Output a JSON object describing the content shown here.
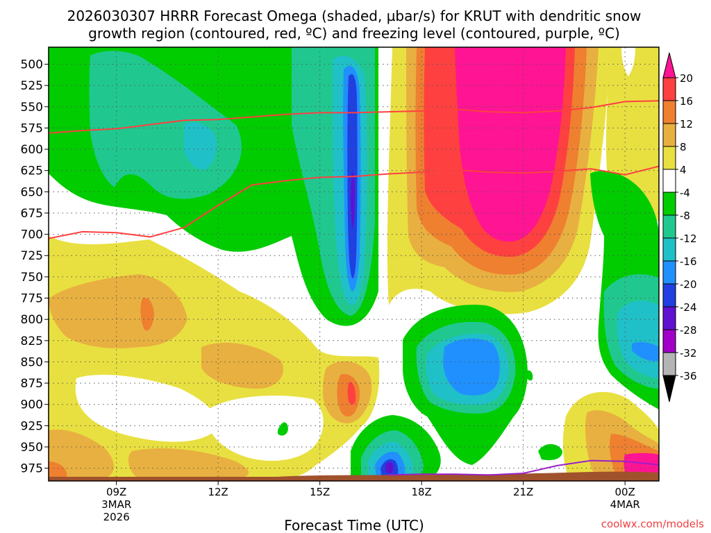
{
  "chart_data": {
    "type": "heatmap",
    "title_line1": "2026030307 HRRR Forecast Omega (shaded, µbar/s) for KRUT with dendritic snow",
    "title_line2": "growth region (contoured, red, ºC) and freezing level (contoured, purple, ºC)",
    "xlabel": "Forecast Time (UTC)",
    "ylabel": "",
    "y_ticks": [
      "500",
      "525",
      "550",
      "575",
      "600",
      "625",
      "650",
      "675",
      "700",
      "725",
      "750",
      "775",
      "800",
      "825",
      "850",
      "875",
      "900",
      "925",
      "950",
      "975"
    ],
    "x_ticks": [
      {
        "label": "09Z",
        "sub1": "3MAR",
        "sub2": "2026",
        "hour": 9
      },
      {
        "label": "12Z",
        "sub1": "",
        "sub2": "",
        "hour": 12
      },
      {
        "label": "15Z",
        "sub1": "",
        "sub2": "",
        "hour": 15
      },
      {
        "label": "18Z",
        "sub1": "",
        "sub2": "",
        "hour": 18
      },
      {
        "label": "21Z",
        "sub1": "",
        "sub2": "",
        "hour": 21
      },
      {
        "label": "00Z",
        "sub1": "4MAR",
        "sub2": "",
        "hour": 24
      }
    ],
    "x_range_hours": [
      7.0,
      25.0
    ],
    "y_range_mb": [
      480,
      990
    ],
    "colorbar": {
      "labels": [
        "20",
        "16",
        "12",
        "8",
        "4",
        "-4",
        "-8",
        "-12",
        "-16",
        "-20",
        "-24",
        "-28",
        "-32",
        "-36"
      ],
      "colors": [
        "#ff1493",
        "#ff4040",
        "#ee8030",
        "#e8b040",
        "#e8e040",
        "#ffffff",
        "#00cc00",
        "#20c890",
        "#20c0c8",
        "#2090ff",
        "#2040e0",
        "#6010d0",
        "#a000c8",
        "#b4b4b4",
        "#000000"
      ]
    },
    "colors": {
      "neutral": "#ffffff",
      "weak_down": "#e8e040",
      "mod_down": "#e8b040",
      "strong_down": "#ee8030",
      "vstrong_down": "#ff4040",
      "max_down": "#ff1493",
      "weak_up": "#00cc00",
      "mod_up": "#20c890",
      "strong_up": "#20c0c8",
      "vstrong_up": "#2090ff",
      "max_up": "#2040e0",
      "extreme_up": "#6010d0",
      "terrain": "#a0522d",
      "dgz_line": "#ff4040",
      "freezing_line": "#9a20c8"
    },
    "dgz_upper": [
      [
        7.0,
        581
      ],
      [
        8.0,
        578
      ],
      [
        9.0,
        576
      ],
      [
        10.0,
        571
      ],
      [
        11.0,
        566
      ],
      [
        12.0,
        565
      ],
      [
        13.0,
        562
      ],
      [
        14.0,
        559
      ],
      [
        15.0,
        557
      ],
      [
        16.0,
        557
      ],
      [
        17.0,
        556
      ],
      [
        18.0,
        555
      ],
      [
        19.0,
        553
      ],
      [
        20.0,
        556
      ],
      [
        21.0,
        557
      ],
      [
        22.0,
        555
      ],
      [
        23.0,
        551
      ],
      [
        24.0,
        544
      ],
      [
        25.0,
        543
      ]
    ],
    "dgz_lower": [
      [
        7.0,
        705
      ],
      [
        8.0,
        697
      ],
      [
        9.0,
        698
      ],
      [
        10.0,
        703
      ],
      [
        11.0,
        692
      ],
      [
        12.0,
        666
      ],
      [
        13.0,
        642
      ],
      [
        14.0,
        637
      ],
      [
        15.0,
        633
      ],
      [
        16.0,
        632
      ],
      [
        17.0,
        629
      ],
      [
        18.0,
        627
      ],
      [
        19.0,
        624
      ],
      [
        20.0,
        627
      ],
      [
        21.0,
        628
      ],
      [
        22.0,
        626
      ],
      [
        23.0,
        623
      ],
      [
        24.0,
        630
      ],
      [
        25.0,
        620
      ]
    ],
    "freezing_level": [
      [
        17.0,
        983
      ],
      [
        18.0,
        982
      ],
      [
        19.0,
        982
      ],
      [
        20.0,
        983
      ],
      [
        21.0,
        981
      ],
      [
        22.0,
        972
      ],
      [
        23.0,
        966
      ],
      [
        24.0,
        967
      ],
      [
        25.0,
        971
      ]
    ],
    "credit": "coolwx.com/models"
  }
}
